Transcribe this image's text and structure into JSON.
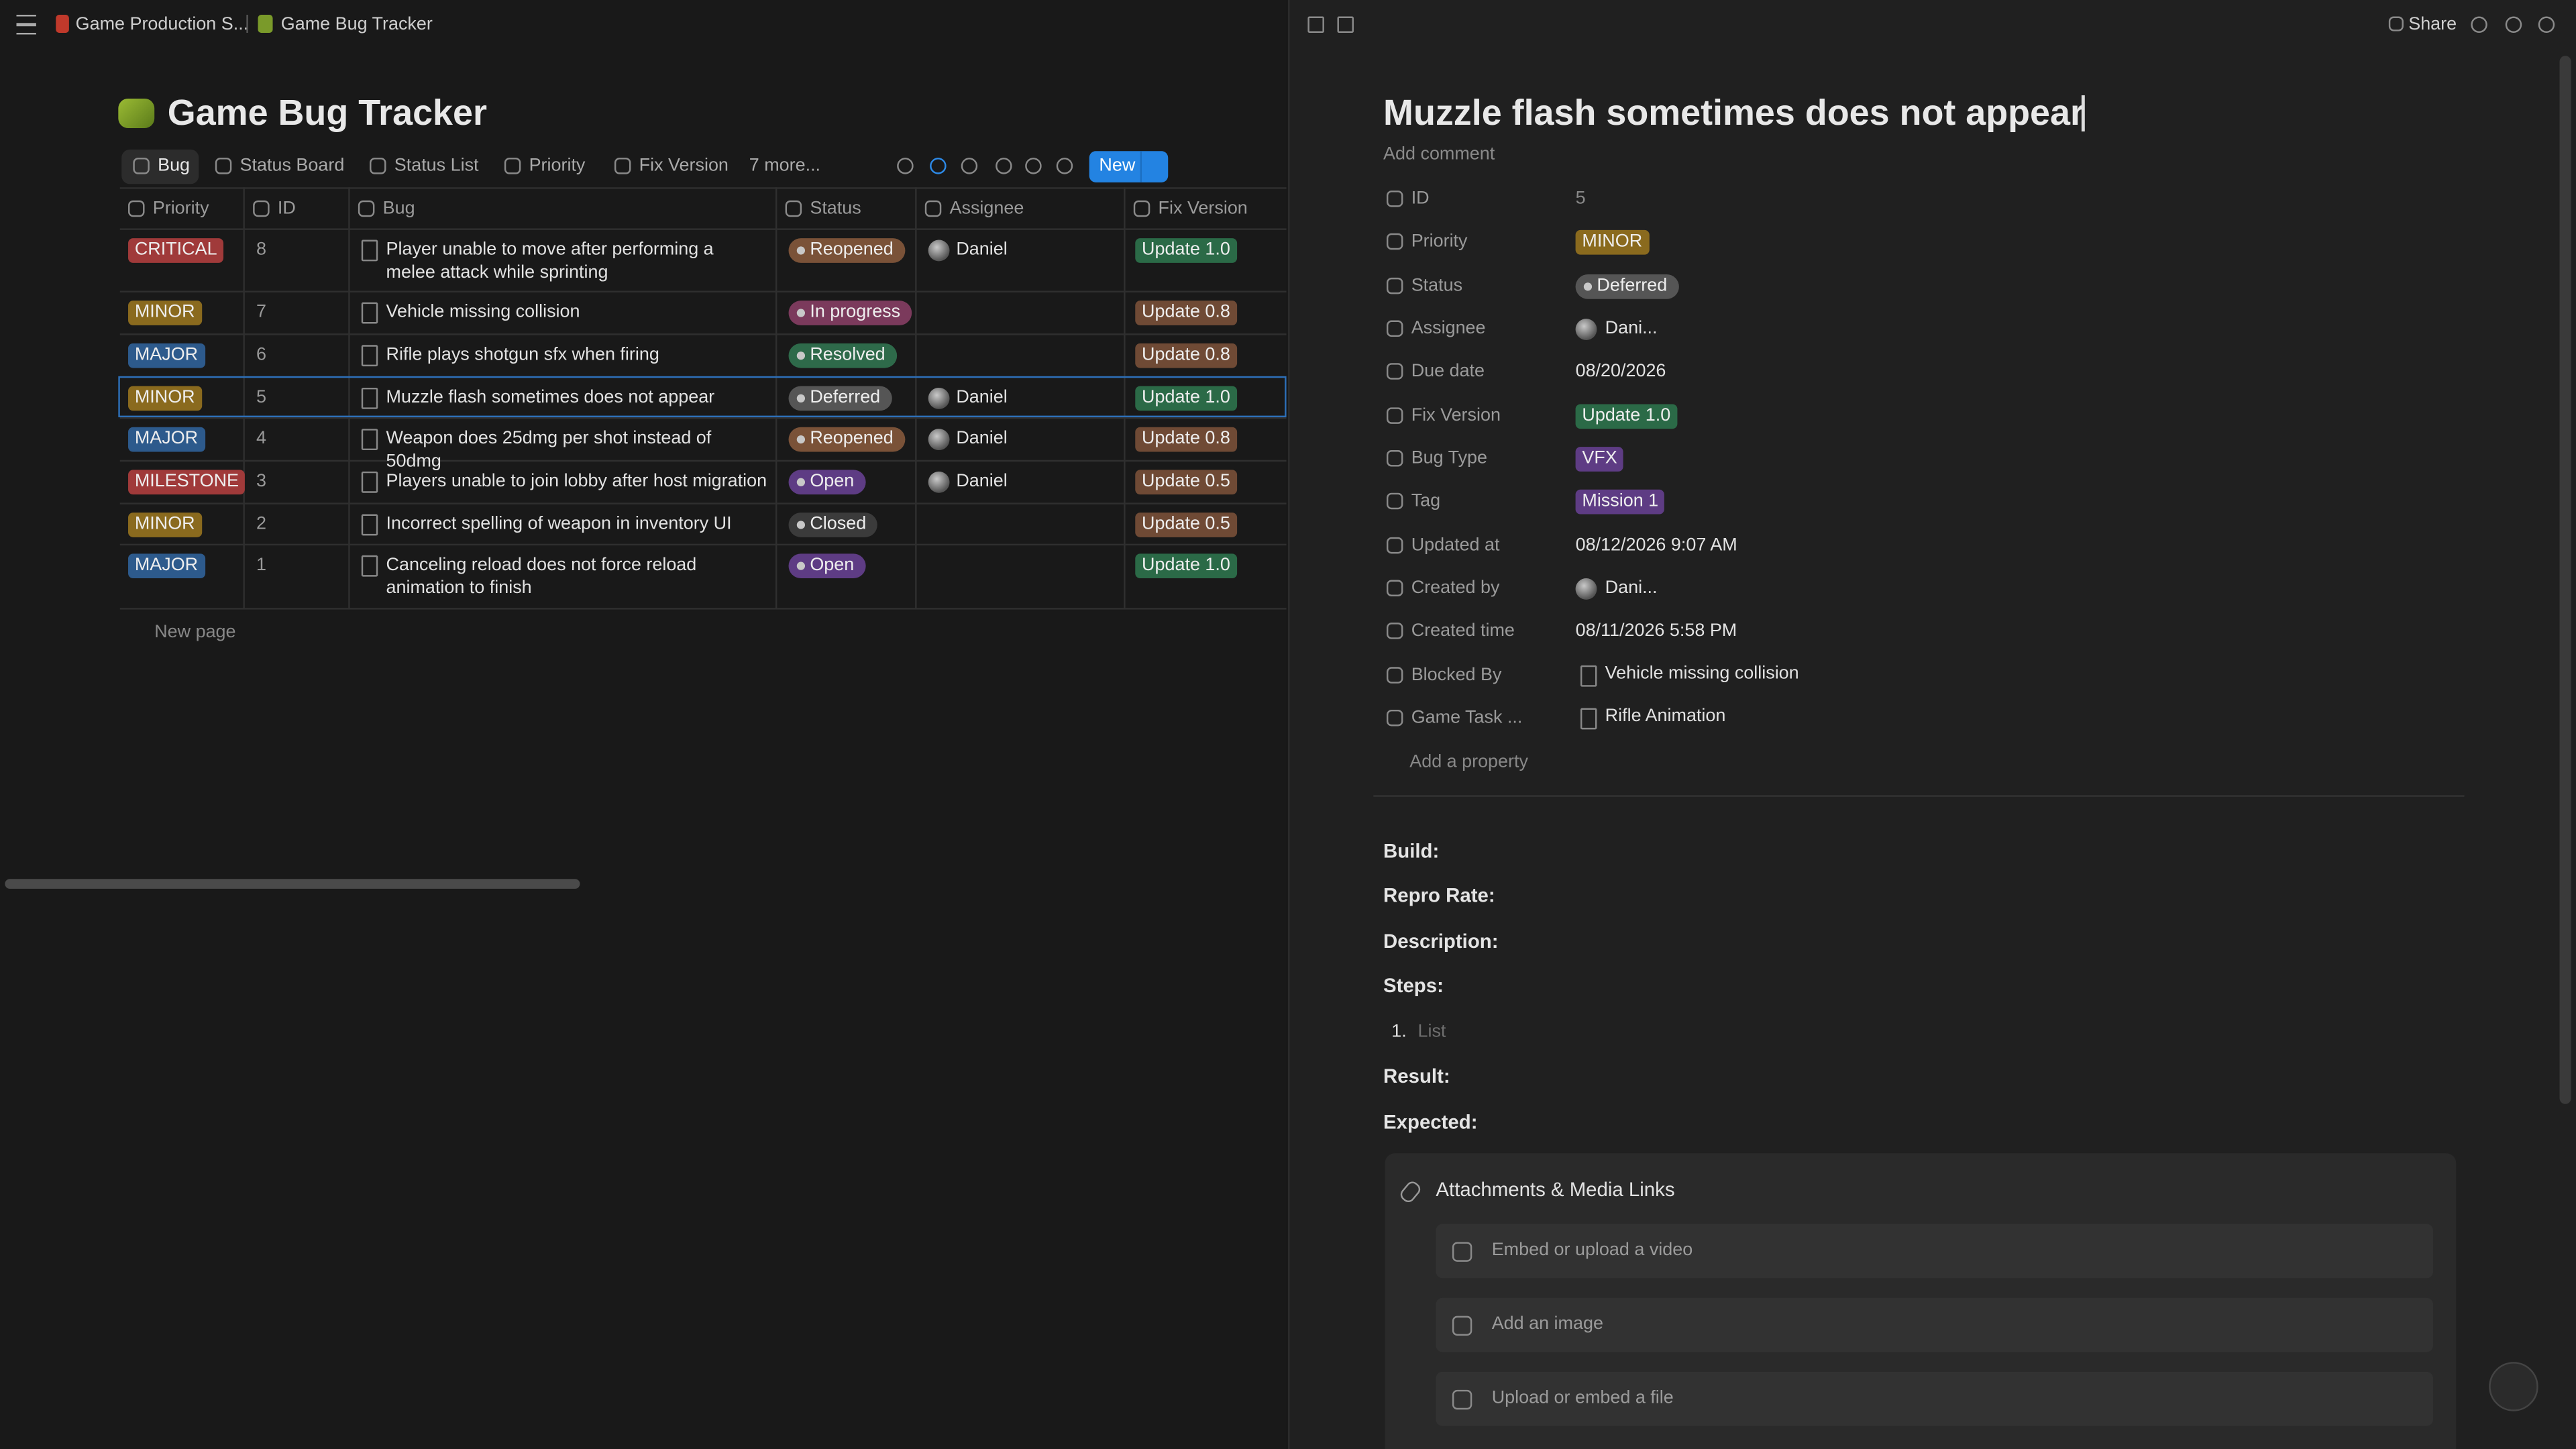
{
  "breadcrumbs": [
    "Game Production S...",
    "Game Bug Tracker"
  ],
  "header": {
    "title": "Game Bug Tracker"
  },
  "views": [
    "Bug",
    "Status Board",
    "Status List",
    "Priority",
    "Fix Version",
    "7 more..."
  ],
  "toolbar": {
    "new": "New"
  },
  "table": {
    "columns": [
      "Priority",
      "ID",
      "Bug",
      "Status",
      "Assignee",
      "Fix Version"
    ],
    "rows": [
      {
        "priority": "CRITICAL",
        "priority_color": "#a03a3a",
        "id": 8,
        "bug": "Player unable to move after performing a melee attack while sprinting",
        "status": "Reopened",
        "status_color": "#7a5238",
        "assignee": "Daniel",
        "fix": "Update 1.0",
        "fix_color": "#2b6a47"
      },
      {
        "priority": "MINOR",
        "priority_color": "#8a6a1e",
        "id": 7,
        "bug": "Vehicle missing collision",
        "status": "In progress",
        "status_color": "#7b3a5c",
        "assignee": null,
        "fix": "Update 0.8",
        "fix_color": "#6f4a35"
      },
      {
        "priority": "MAJOR",
        "priority_color": "#2d5a8c",
        "id": 6,
        "bug": "Rifle plays shotgun sfx when firing",
        "status": "Resolved",
        "status_color": "#2e6a4a",
        "assignee": null,
        "fix": "Update 0.8",
        "fix_color": "#6f4a35"
      },
      {
        "priority": "MINOR",
        "priority_color": "#8a6a1e",
        "id": 5,
        "bug": "Muzzle flash sometimes does not appear",
        "status": "Deferred",
        "status_color": "#555555",
        "assignee": "Daniel",
        "fix": "Update 1.0",
        "fix_color": "#2b6a47"
      },
      {
        "priority": "MAJOR",
        "priority_color": "#2d5a8c",
        "id": 4,
        "bug": "Weapon does 25dmg per shot instead of 50dmg",
        "status": "Reopened",
        "status_color": "#7a5238",
        "assignee": "Daniel",
        "fix": "Update 0.8",
        "fix_color": "#6f4a35"
      },
      {
        "priority": "MILESTONE",
        "priority_color": "#a03a3a",
        "id": 3,
        "bug": "Players unable to join lobby after host migration",
        "status": "Open",
        "status_color": "#5e3c84",
        "assignee": "Daniel",
        "fix": "Update 0.5",
        "fix_color": "#6f4a35"
      },
      {
        "priority": "MINOR",
        "priority_color": "#8a6a1e",
        "id": 2,
        "bug": "Incorrect spelling of weapon in inventory UI",
        "status": "Closed",
        "status_color": "#3b3b3b",
        "assignee": null,
        "fix": "Update 0.5",
        "fix_color": "#6f4a35"
      },
      {
        "priority": "MAJOR",
        "priority_color": "#2d5a8c",
        "id": 1,
        "bug": "Canceling reload does not force reload animation to finish",
        "status": "Open",
        "status_color": "#5e3c84",
        "assignee": null,
        "fix": "Update 1.0",
        "fix_color": "#2b6a47"
      }
    ]
  },
  "new_page": "New page",
  "panel": {
    "share": "Share",
    "title": "Muzzle flash sometimes does not appear",
    "add_comment": "Add comment",
    "properties": [
      {
        "label": "ID",
        "value": "5",
        "kind": "muted"
      },
      {
        "label": "Priority",
        "value": "MINOR",
        "kind": "tag",
        "color": "#8a6a1e"
      },
      {
        "label": "Status",
        "value": "Deferred",
        "kind": "status",
        "color": "#555555"
      },
      {
        "label": "Assignee",
        "value": "Dani...",
        "kind": "person"
      },
      {
        "label": "Due date",
        "value": "08/20/2026",
        "kind": "plain"
      },
      {
        "label": "Fix Version",
        "value": "Update 1.0",
        "kind": "tag",
        "color": "#2b6a47"
      },
      {
        "label": "Bug Type",
        "value": "VFX",
        "kind": "tag",
        "color": "#5e3c84"
      },
      {
        "label": "Tag",
        "value": "Mission 1",
        "kind": "tag",
        "color": "#5e3c84"
      },
      {
        "label": "Updated at",
        "value": "08/12/2026 9:07 AM",
        "kind": "plain"
      },
      {
        "label": "Created by",
        "value": "Dani...",
        "kind": "person"
      },
      {
        "label": "Created time",
        "value": "08/11/2026 5:58 PM",
        "kind": "plain"
      },
      {
        "label": "Blocked By",
        "value": "Vehicle missing collision",
        "kind": "doc"
      },
      {
        "label": "Game Task ...",
        "value": "Rifle Animation",
        "kind": "doc"
      }
    ],
    "add_property": "Add a property",
    "sections": [
      "Build:",
      "Repro Rate:",
      "Description:",
      "Steps:",
      "Result:",
      "Expected:"
    ],
    "list_number": "1.",
    "list_placeholder": "List",
    "attachments": {
      "title": "Attachments & Media Links",
      "items": [
        "Embed or upload a video",
        "Add an image",
        "Upload or embed a file"
      ]
    }
  }
}
